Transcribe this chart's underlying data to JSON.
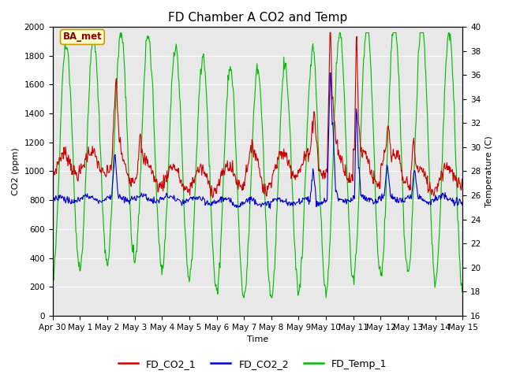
{
  "title": "FD Chamber A CO2 and Temp",
  "xlabel": "Time",
  "ylabel_left": "CO2 (ppm)",
  "ylabel_right": "Temperature (C)",
  "ylim_left": [
    0,
    2000
  ],
  "ylim_right": [
    16,
    40
  ],
  "yticks_left": [
    0,
    200,
    400,
    600,
    800,
    1000,
    1200,
    1400,
    1600,
    1800,
    2000
  ],
  "yticks_right": [
    16,
    18,
    20,
    22,
    24,
    26,
    28,
    30,
    32,
    34,
    36,
    38,
    40
  ],
  "color_co2_1": "#cc0000",
  "color_co2_2": "#0000cc",
  "color_temp": "#00bb00",
  "legend_labels": [
    "FD_CO2_1",
    "FD_CO2_2",
    "FD_Temp_1"
  ],
  "annotation_text": "BA_met",
  "annotation_bg": "#ffffcc",
  "annotation_border": "#cc9900",
  "bg_color": "#e8e8e8",
  "fig_bg": "#ffffff",
  "linewidth": 0.8,
  "title_fontsize": 11,
  "label_fontsize": 8,
  "tick_fontsize": 7.5,
  "legend_fontsize": 9
}
